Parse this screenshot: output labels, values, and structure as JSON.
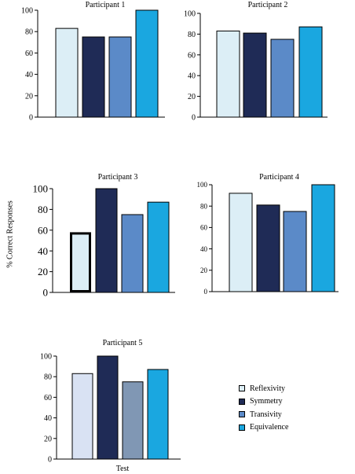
{
  "chart_data": {
    "type": "bar",
    "ylabel": "% Correct Responses",
    "categories": [
      "Reflexivity",
      "Symmetry",
      "Transivity",
      "Equivalence"
    ],
    "ylim": [
      0,
      100
    ],
    "yticks": [
      "0",
      "20",
      "40",
      "60",
      "80",
      "100"
    ],
    "grid": false,
    "legend_position": "bottom-right",
    "panels": [
      {
        "title": "Participant 1",
        "xlabel": "",
        "values": [
          83,
          75,
          75,
          100
        ],
        "colors": [
          "#dceef6",
          "#1f2b56",
          "#5b8ac8",
          "#1aa7e0"
        ]
      },
      {
        "title": "Participant 2",
        "xlabel": "",
        "values": [
          83,
          81,
          75,
          87
        ],
        "colors": [
          "#dceef6",
          "#1f2b56",
          "#5b8ac8",
          "#1aa7e0"
        ]
      },
      {
        "title": "Participant 3",
        "xlabel": "",
        "values": [
          58,
          100,
          75,
          87
        ],
        "colors": [
          "#dceef6",
          "#1f2b56",
          "#5b8ac8",
          "#1aa7e0"
        ],
        "highlight_index": 0
      },
      {
        "title": "Participant 4",
        "xlabel": "",
        "values": [
          92,
          81,
          75,
          100
        ],
        "colors": [
          "#dceef6",
          "#1f2b56",
          "#5b8ac8",
          "#1aa7e0"
        ]
      },
      {
        "title": "Participant 5",
        "xlabel": "Test",
        "values": [
          83,
          100,
          75,
          87
        ],
        "colors": [
          "#d9e2f3",
          "#1f2b56",
          "#8097b4",
          "#1aa7e0"
        ]
      }
    ]
  },
  "legend": {
    "items": [
      {
        "label": "Reflexivity",
        "color": "#dceef6"
      },
      {
        "label": "Symmetry",
        "color": "#1f2b56"
      },
      {
        "label": "Transivity",
        "color": "#5b8ac8"
      },
      {
        "label": "Equivalence",
        "color": "#1aa7e0"
      }
    ]
  }
}
